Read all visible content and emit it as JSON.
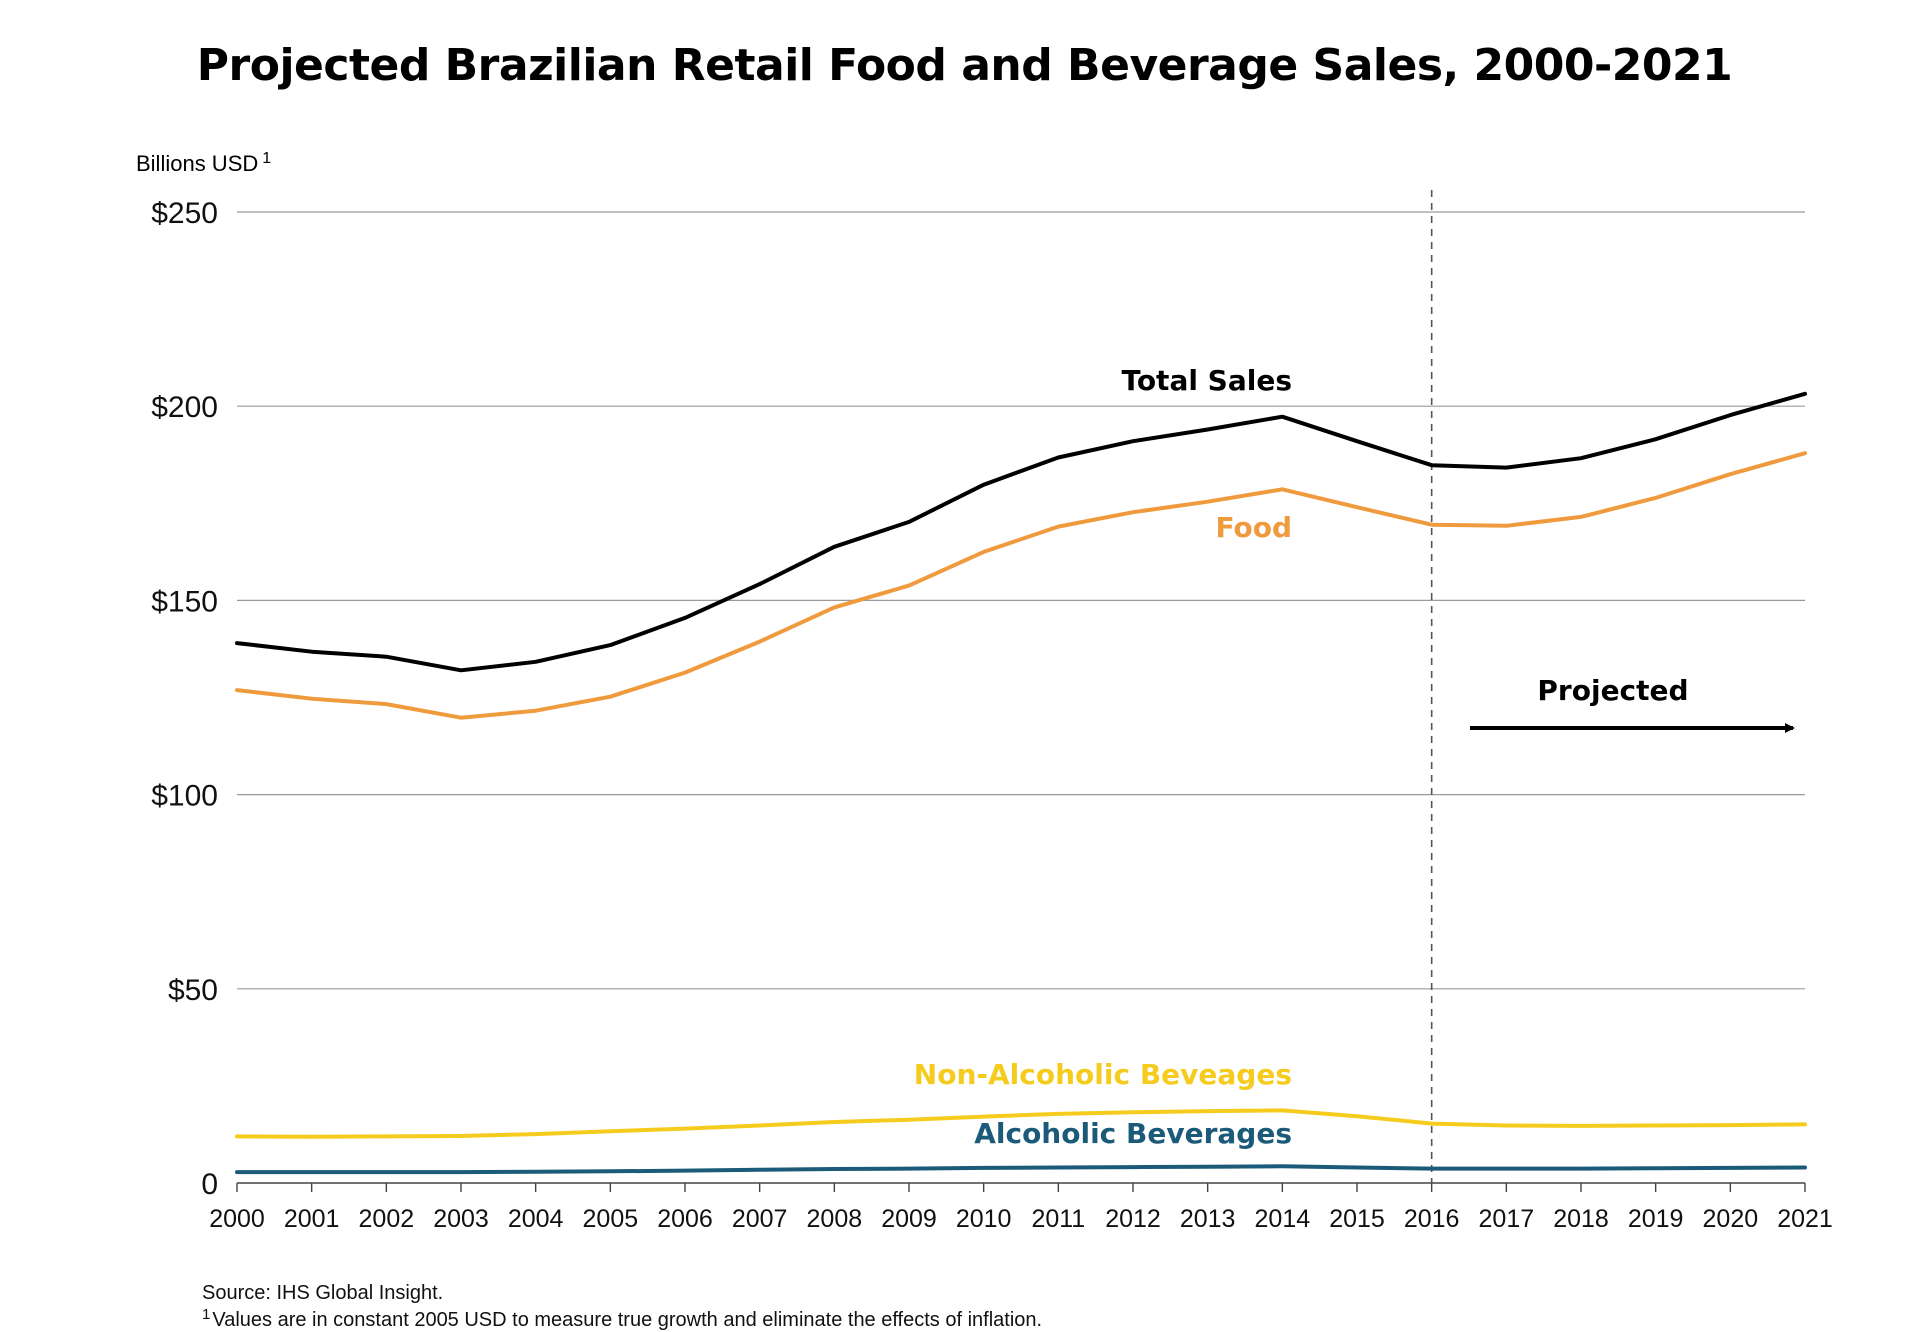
{
  "chart_data": {
    "type": "line",
    "title": "Projected Brazilian Retail Food and Beverage Sales, 2000-2021",
    "ylabel": "Billions USD",
    "ylabel_note_marker": "1",
    "ylim": [
      0,
      250
    ],
    "yticks": [
      0,
      50,
      100,
      150,
      200,
      250
    ],
    "ytick_labels": [
      "0",
      "$50",
      "$100",
      "$150",
      "$200",
      "$250"
    ],
    "grid": true,
    "x": [
      "2000",
      "2001",
      "2002",
      "2003",
      "2004",
      "2005",
      "2006",
      "2007",
      "2008",
      "2009",
      "2010",
      "2011",
      "2012",
      "2013",
      "2014",
      "2015",
      "2016",
      "2017",
      "2018",
      "2019",
      "2020",
      "2021"
    ],
    "series": [
      {
        "name": "Total Sales",
        "color": "#000000",
        "values": [
          139,
          136.8,
          135.5,
          132,
          134.2,
          138.5,
          145.5,
          154.2,
          163.8,
          170.2,
          179.8,
          186.8,
          191,
          194,
          197.3,
          191,
          184.8,
          184.2,
          186.6,
          191.5,
          197.7,
          203.2
        ]
      },
      {
        "name": "Food",
        "color": "#F09A3E",
        "values": [
          126.9,
          124.7,
          123.3,
          119.8,
          121.6,
          125.2,
          131.4,
          139.4,
          148.2,
          153.8,
          162.5,
          169,
          172.7,
          175.4,
          178.6,
          174,
          169.5,
          169.2,
          171.5,
          176.4,
          182.5,
          187.9
        ]
      },
      {
        "name": "Non-Alcoholic Beveages",
        "color": "#F5CC1E",
        "values": [
          12,
          11.9,
          12,
          12.1,
          12.6,
          13.3,
          14,
          14.8,
          15.7,
          16.3,
          17.1,
          17.8,
          18.2,
          18.5,
          18.7,
          17.2,
          15.3,
          14.8,
          14.7,
          14.8,
          14.9,
          15.1
        ]
      },
      {
        "name": "Alcoholic Beverages",
        "color": "#1B5A78",
        "values": [
          2.8,
          2.8,
          2.8,
          2.8,
          2.9,
          3.0,
          3.2,
          3.4,
          3.6,
          3.7,
          3.9,
          4.0,
          4.1,
          4.2,
          4.3,
          4.0,
          3.7,
          3.7,
          3.7,
          3.8,
          3.9,
          4.0
        ]
      }
    ],
    "projection_start": "2016",
    "annotations": {
      "projected": "Projected",
      "source": "Source:  IHS Global Insight.",
      "footnote_marker": "1",
      "footnote": "Values are in constant 2005 USD to measure true growth and eliminate the effects of inflation."
    }
  }
}
